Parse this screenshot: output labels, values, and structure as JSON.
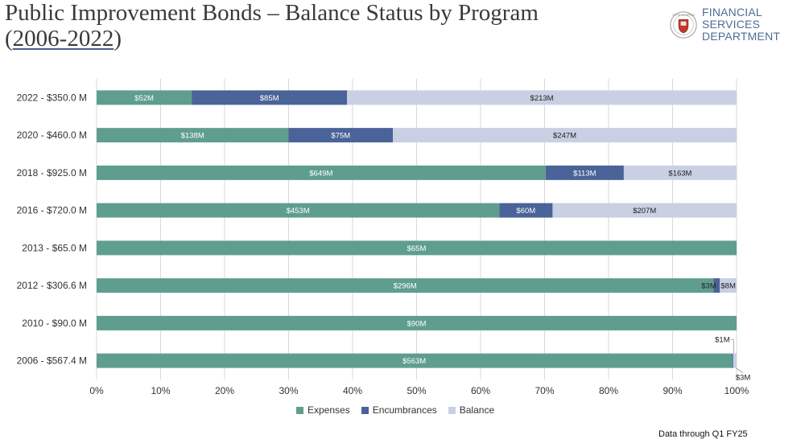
{
  "header": {
    "title_line1": "Public Improvement Bonds – Balance Status by Program",
    "title_line2_open": "(",
    "title_line2_years": "2006-2022",
    "title_line2_close": ")",
    "dept_line1": "FINANCIAL SERVICES",
    "dept_line2": "DEPARTMENT",
    "seal_text": "CITY OF SAN ANTONIO"
  },
  "footnote": "Data through Q1 FY25",
  "colors": {
    "expenses": "#5f9e8f",
    "encumbrances": "#4a6398",
    "balance": "#c9d0e3",
    "gridline": "#d9d9d9",
    "dept_text": "#4f6d95",
    "seal_red": "#c0392b"
  },
  "chart_data": {
    "type": "bar",
    "orientation": "horizontal",
    "stacked": "percent",
    "title": "",
    "categories": [
      "2022 - $350.0 M",
      "2020 - $460.0 M",
      "2018 - $925.0 M",
      "2016 - $720.0 M",
      "2013 - $65.0 M",
      "2012 - $306.6 M",
      "2010 - $90.0 M",
      "2006 - $567.4 M"
    ],
    "series": [
      {
        "name": "Expenses",
        "values": [
          52,
          138,
          649,
          453,
          65,
          296,
          90,
          563
        ],
        "labels": [
          "$52M",
          "$138M",
          "$649M",
          "$453M",
          "$65M",
          "$296M",
          "$90M",
          "$563M"
        ]
      },
      {
        "name": "Encumbrances",
        "values": [
          85,
          75,
          113,
          60,
          0,
          3,
          0,
          1
        ],
        "labels": [
          "$85M",
          "$75M",
          "$113M",
          "$60M",
          "",
          "$3M",
          "",
          "$1M"
        ]
      },
      {
        "name": "Balance",
        "values": [
          213,
          247,
          163,
          207,
          0,
          8,
          0,
          3
        ],
        "labels": [
          "$213M",
          "$247M",
          "$163M",
          "$207M",
          "",
          "$8M",
          "",
          "$3M"
        ]
      }
    ],
    "xticks": [
      "0%",
      "10%",
      "20%",
      "30%",
      "40%",
      "50%",
      "60%",
      "70%",
      "80%",
      "90%",
      "100%"
    ],
    "xlim": [
      0,
      100
    ],
    "xlabel": "",
    "ylabel": "",
    "grid": true,
    "legend": [
      "Expenses",
      "Encumbrances",
      "Balance"
    ],
    "legend_position": "bottom"
  }
}
